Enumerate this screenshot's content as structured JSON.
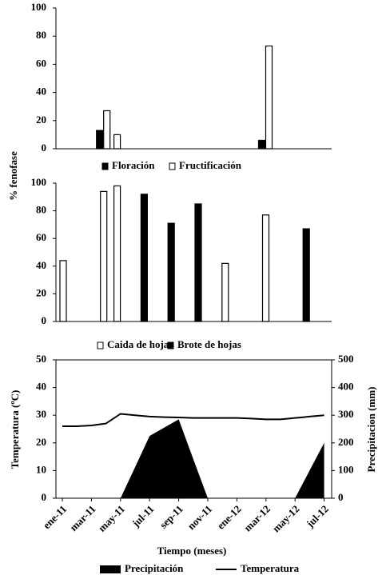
{
  "chart_data": [
    {
      "type": "bar",
      "ylabel": "% fenofase",
      "ylim": [
        0,
        100
      ],
      "yticks": [
        0,
        20,
        40,
        60,
        80,
        100
      ],
      "series": [
        {
          "name": "Floración",
          "color": "#000000",
          "values": [
            null,
            null,
            null,
            13,
            null,
            null,
            null,
            null,
            null,
            null,
            null,
            null,
            null,
            null,
            null,
            6,
            null,
            null,
            null
          ]
        },
        {
          "name": "Fructificación",
          "color": "#ffffff",
          "values": [
            null,
            null,
            null,
            27,
            10,
            null,
            null,
            null,
            null,
            null,
            null,
            null,
            null,
            null,
            null,
            73,
            null,
            null,
            null
          ]
        }
      ]
    },
    {
      "type": "bar",
      "ylim": [
        0,
        100
      ],
      "yticks": [
        0,
        20,
        40,
        60,
        80,
        100
      ],
      "series": [
        {
          "name": "Caida de hojas",
          "color": "#ffffff",
          "values": [
            44,
            null,
            null,
            94,
            98,
            null,
            null,
            null,
            null,
            null,
            null,
            null,
            42,
            null,
            null,
            77,
            null,
            null,
            null
          ]
        },
        {
          "name": "Brote de hojas",
          "color": "#000000",
          "values": [
            null,
            null,
            null,
            null,
            null,
            null,
            92,
            null,
            71,
            null,
            85,
            null,
            null,
            null,
            null,
            null,
            null,
            null,
            67
          ]
        }
      ]
    },
    {
      "type": "line",
      "xlabel": "Tiempo (meses)",
      "ylabel": "Temperatura (ºC)",
      "y2label": "Precipitacion (mm)",
      "categories": [
        "ene-11",
        null,
        "mar-11",
        null,
        "may-11",
        null,
        "jul-11",
        null,
        "sep-11",
        null,
        "nov-11",
        null,
        "ene-12",
        null,
        "mar-12",
        null,
        "may-12",
        null,
        "jul-12"
      ],
      "ylim": [
        0,
        50
      ],
      "yticks": [
        0,
        10,
        20,
        30,
        40,
        50
      ],
      "y2lim": [
        0,
        500
      ],
      "y2ticks": [
        0,
        100,
        200,
        300,
        400,
        500
      ],
      "series": [
        {
          "name": "Precipitación",
          "type": "area",
          "axis": "y2",
          "color": "#000000",
          "values": [
            0,
            0,
            0,
            0,
            0,
            112,
            225,
            255,
            285,
            142,
            0,
            0,
            0,
            0,
            0,
            0,
            0,
            100,
            200
          ]
        },
        {
          "name": "Temperatura",
          "type": "line",
          "color": "#000000",
          "values": [
            26,
            26,
            26.3,
            27,
            30.5,
            30,
            29.5,
            29.3,
            29.2,
            29,
            29,
            29,
            29,
            28.8,
            28.5,
            28.5,
            29,
            29.5,
            30
          ]
        }
      ]
    }
  ]
}
